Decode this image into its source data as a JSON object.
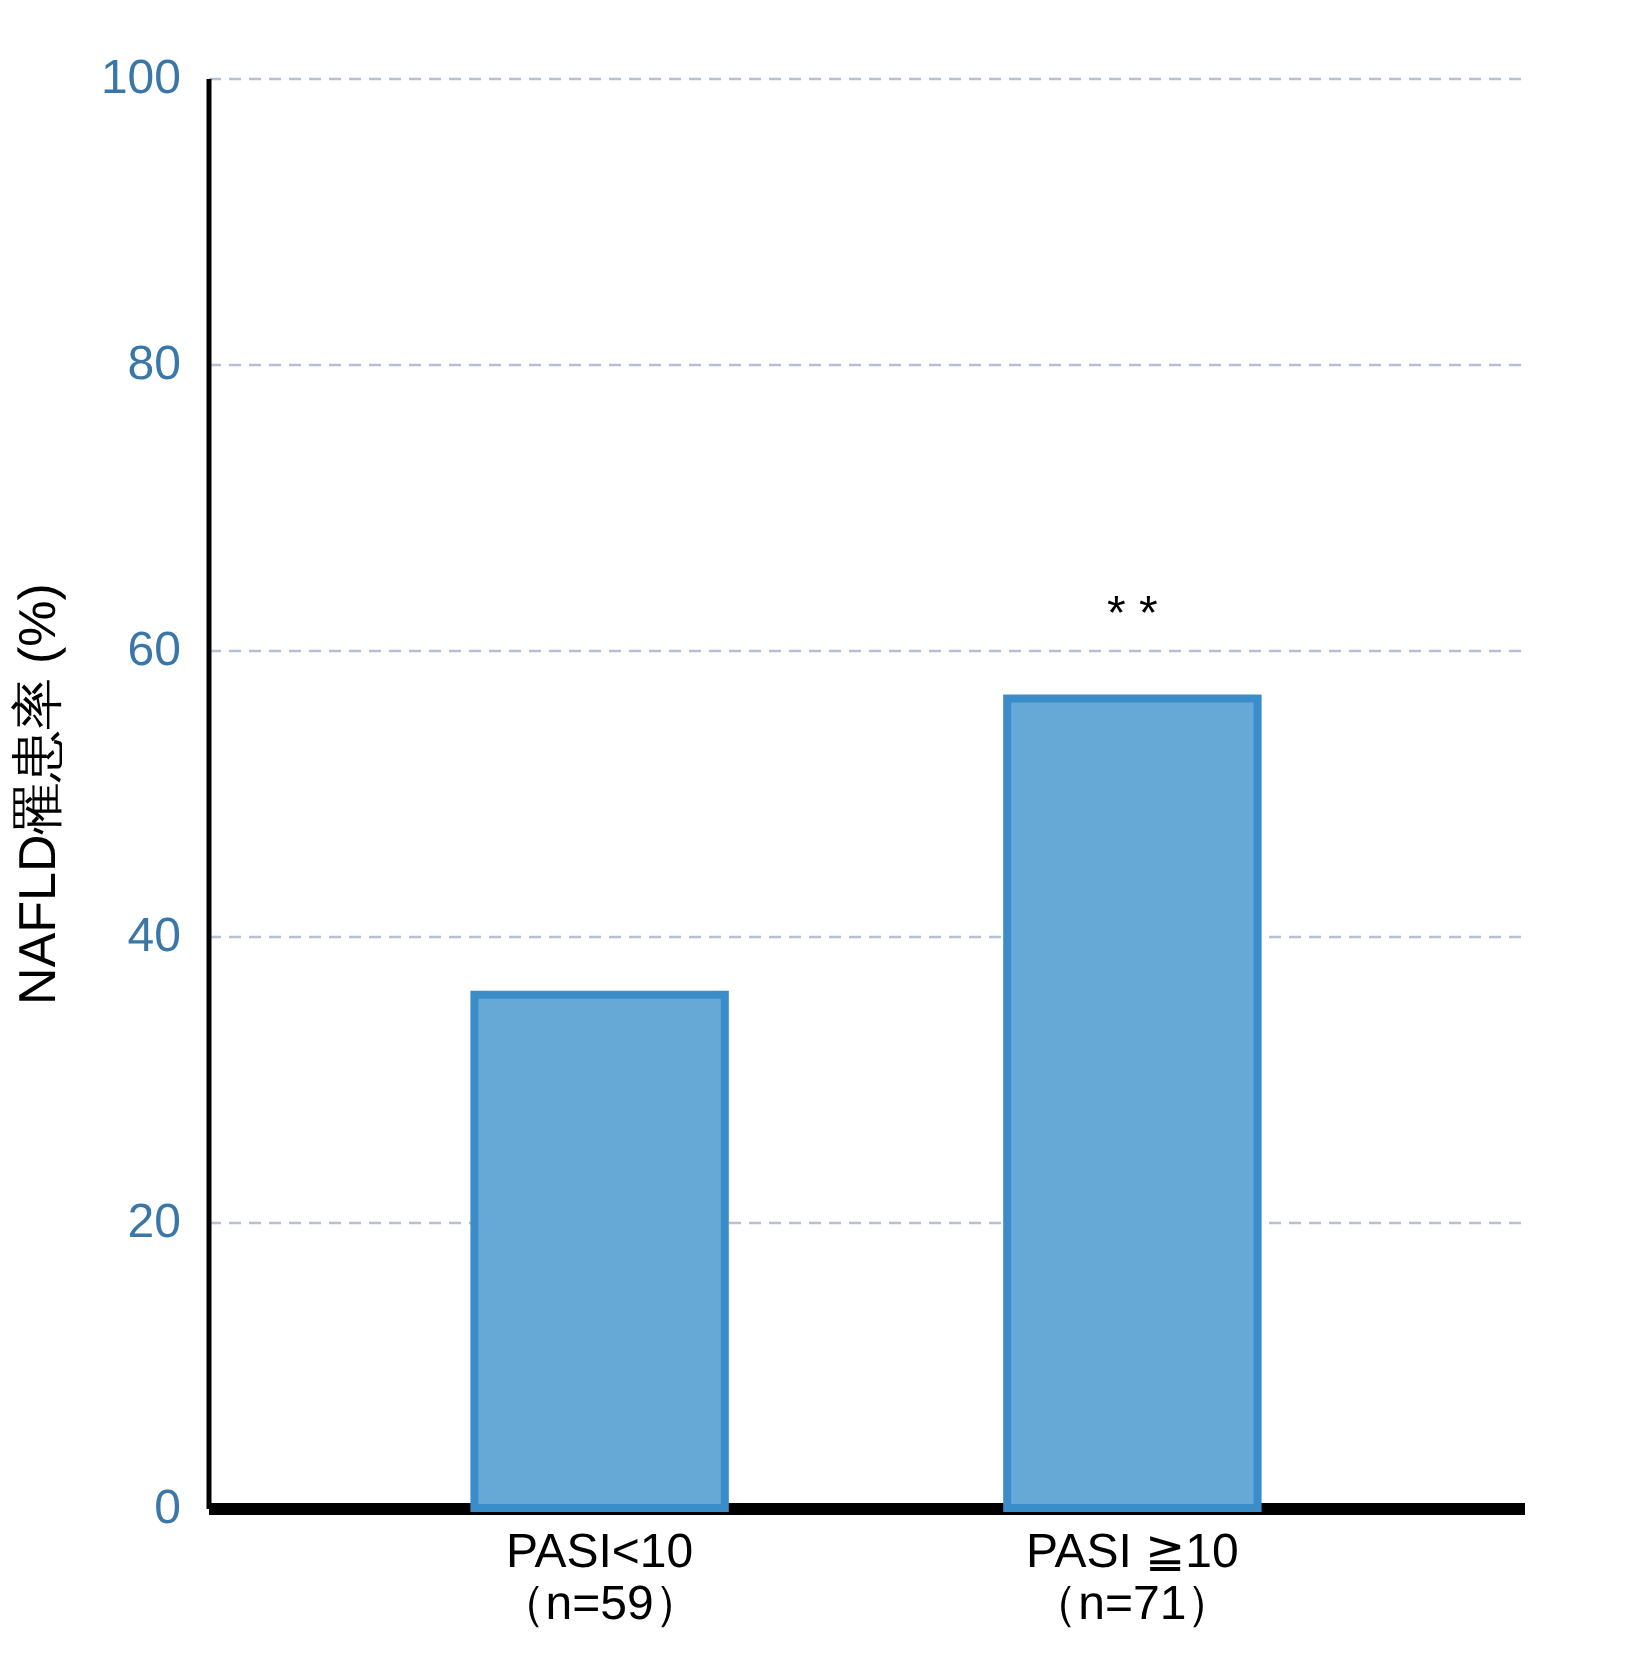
{
  "chart_data": {
    "type": "bar",
    "ylabel": "NAFLD罹患率 (%)",
    "categories": [
      "PASI<10\n（n=59）",
      "PASI ≧10\n（n=71）"
    ],
    "values": [
      35.9,
      56.6
    ],
    "color": "#66a9d6",
    "ylim": [
      0,
      100
    ],
    "yticks": [
      0,
      20,
      40,
      60,
      80,
      100
    ],
    "grid": "y",
    "annotations": [
      "* *"
    ]
  }
}
